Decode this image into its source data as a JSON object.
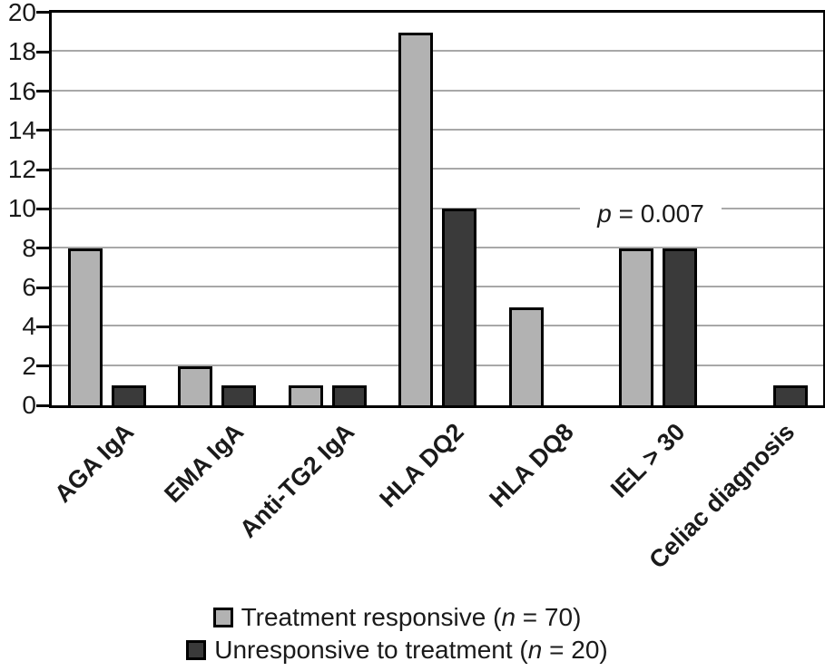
{
  "chart_data": {
    "type": "bar",
    "title": "",
    "xlabel": "",
    "ylabel": "",
    "categories": [
      "AGA IgA",
      "EMA IgA",
      "Anti-TG2 IgA",
      "HLA DQ2",
      "HLA DQ8",
      "IEL > 30",
      "Celiac diagnosis"
    ],
    "series": [
      {
        "name": "Treatment responsive (n = 70)",
        "color": "#b2b2b2",
        "values": [
          8,
          2,
          1,
          19,
          5,
          8,
          0
        ]
      },
      {
        "name": "Unresponsive to treatment (n = 20)",
        "color": "#3a3a3a",
        "values": [
          1,
          1,
          1,
          10,
          0,
          8,
          1
        ]
      }
    ],
    "ylim": [
      0,
      20
    ],
    "ytick_interval": 2,
    "grid": true,
    "legend_position": "bottom",
    "annotations": [
      {
        "text": "p = 0.007",
        "above_category": "IEL > 30",
        "y_value": 10
      }
    ]
  },
  "y_axis": {
    "ticks": [
      "20",
      "18",
      "16",
      "14",
      "12",
      "10",
      "8",
      "6",
      "4",
      "2",
      "0"
    ]
  },
  "annotation": {
    "var": "p",
    "rest": " = 0.007"
  },
  "legend": {
    "items": [
      {
        "pre": "Treatment responsive (",
        "var": "n",
        "post": " = 70)"
      },
      {
        "pre": "Unresponsive to treatment (",
        "var": "n",
        "post": " = 20)"
      }
    ]
  },
  "colors": {
    "series_light": "#b2b2b2",
    "series_dark": "#3a3a3a",
    "gridline": "#a8a8a8",
    "axis": "#000000",
    "background": "#ffffff",
    "text": "#1a1a1a"
  }
}
